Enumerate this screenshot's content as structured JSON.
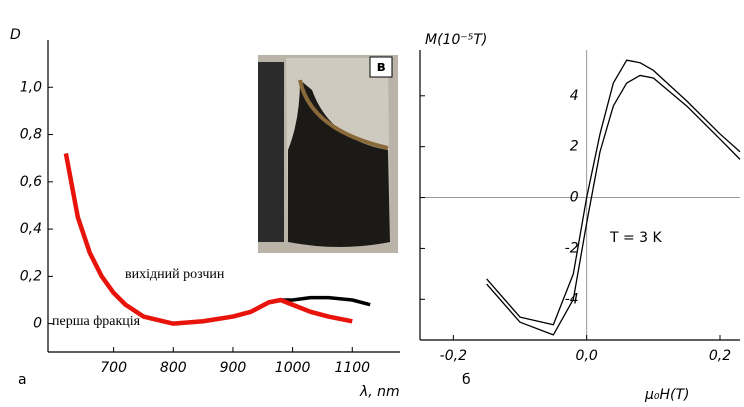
{
  "chart_data": [
    {
      "type": "line",
      "y_label": "D",
      "x_label": "λ, nm",
      "annotations": [
        "а",
        "в"
      ],
      "xlim": [
        590,
        1180
      ],
      "ylim": [
        -0.12,
        1.2
      ],
      "xticks": [
        700,
        800,
        900,
        1000,
        1100
      ],
      "yticks": [
        0,
        {
          "value": 0.2,
          "label": "0,2"
        },
        {
          "value": 0.4,
          "label": "0,4"
        },
        {
          "value": 0.6,
          "label": "0,6"
        },
        {
          "value": 0.8,
          "label": "0,8"
        },
        {
          "value": 1.0,
          "label": "1,0"
        }
      ],
      "x": [
        620,
        640,
        660,
        680,
        700,
        720,
        750,
        800,
        850,
        900,
        930,
        960,
        980,
        1000,
        1030,
        1060,
        1100,
        1130
      ],
      "series": [
        {
          "name": "вихідний розчин",
          "color": "#000000",
          "values": [
            null,
            null,
            null,
            null,
            null,
            null,
            null,
            null,
            null,
            0.03,
            0.05,
            0.09,
            0.1,
            0.1,
            0.11,
            0.11,
            0.1,
            0.08
          ]
        },
        {
          "name": "перша фракція",
          "color": "#e8140c",
          "values": [
            0.72,
            0.45,
            0.3,
            0.2,
            0.13,
            0.08,
            0.03,
            0.0,
            0.01,
            0.03,
            0.05,
            0.09,
            0.1,
            0.08,
            0.05,
            0.03,
            0.01,
            null
          ]
        }
      ]
    },
    {
      "type": "line",
      "y_label": "M(10⁻⁵T)",
      "x_label": "μ₀H(T)",
      "annotations": [
        "б",
        "T = 3 K"
      ],
      "xlim": [
        -0.25,
        0.23
      ],
      "ylim": [
        -5.6,
        5.8
      ],
      "xticks": [
        {
          "value": -0.2,
          "label": "-0,2"
        },
        {
          "value": 0.0,
          "label": "0,0"
        },
        {
          "value": 0.2,
          "label": "0,2"
        }
      ],
      "yticks": [
        -4,
        -2,
        0,
        2,
        4
      ],
      "x": [
        -0.15,
        -0.1,
        -0.05,
        -0.02,
        0,
        0.02,
        0.04,
        0.06,
        0.08,
        0.1,
        0.15,
        0.2,
        0.23
      ],
      "series": [
        {
          "color": "#000000",
          "values": [
            -3.2,
            -4.7,
            -5.0,
            -3.0,
            0.0,
            2.5,
            4.5,
            5.4,
            5.3,
            5.0,
            3.8,
            2.5,
            1.8
          ]
        },
        {
          "color": "#000000",
          "values": [
            -3.4,
            -4.9,
            -5.4,
            -4.0,
            -1.0,
            1.8,
            3.6,
            4.5,
            4.8,
            4.7,
            3.6,
            2.3,
            1.5
          ]
        }
      ]
    }
  ]
}
